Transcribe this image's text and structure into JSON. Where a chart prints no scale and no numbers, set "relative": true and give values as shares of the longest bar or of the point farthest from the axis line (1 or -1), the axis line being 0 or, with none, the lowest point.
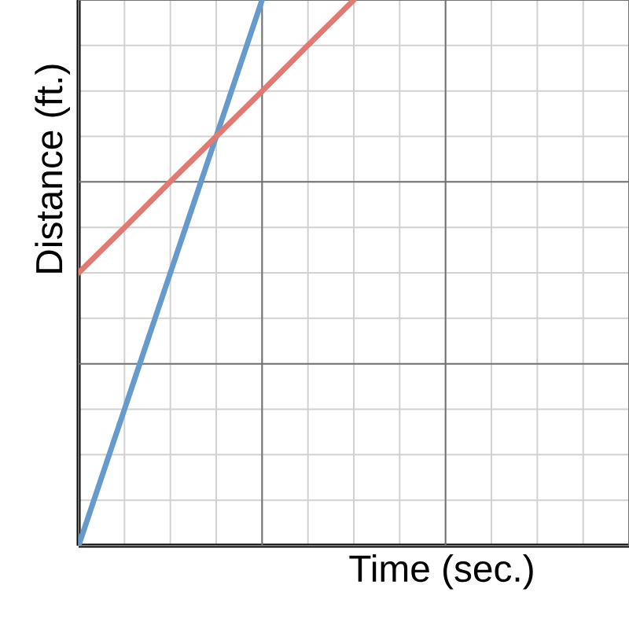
{
  "chart_data": {
    "type": "line",
    "relative": true,
    "xlabel": "Time (sec.)",
    "ylabel": "Distance (ft.)",
    "grid": true,
    "tick_labels": false,
    "categories": [
      null,
      null,
      null,
      null,
      null,
      null,
      null,
      null,
      null,
      null,
      null,
      null,
      null
    ],
    "series": [
      {
        "color": "#6699cc",
        "values": [
          0,
          0.25,
          0.5,
          0.75,
          1,
          null,
          null,
          null,
          null,
          null,
          null,
          null,
          null
        ]
      },
      {
        "color": "#e07b74",
        "values": [
          0.5,
          0.583,
          0.667,
          0.75,
          0.833,
          0.917,
          1,
          null,
          null,
          null,
          null,
          null,
          null
        ]
      }
    ]
  }
}
